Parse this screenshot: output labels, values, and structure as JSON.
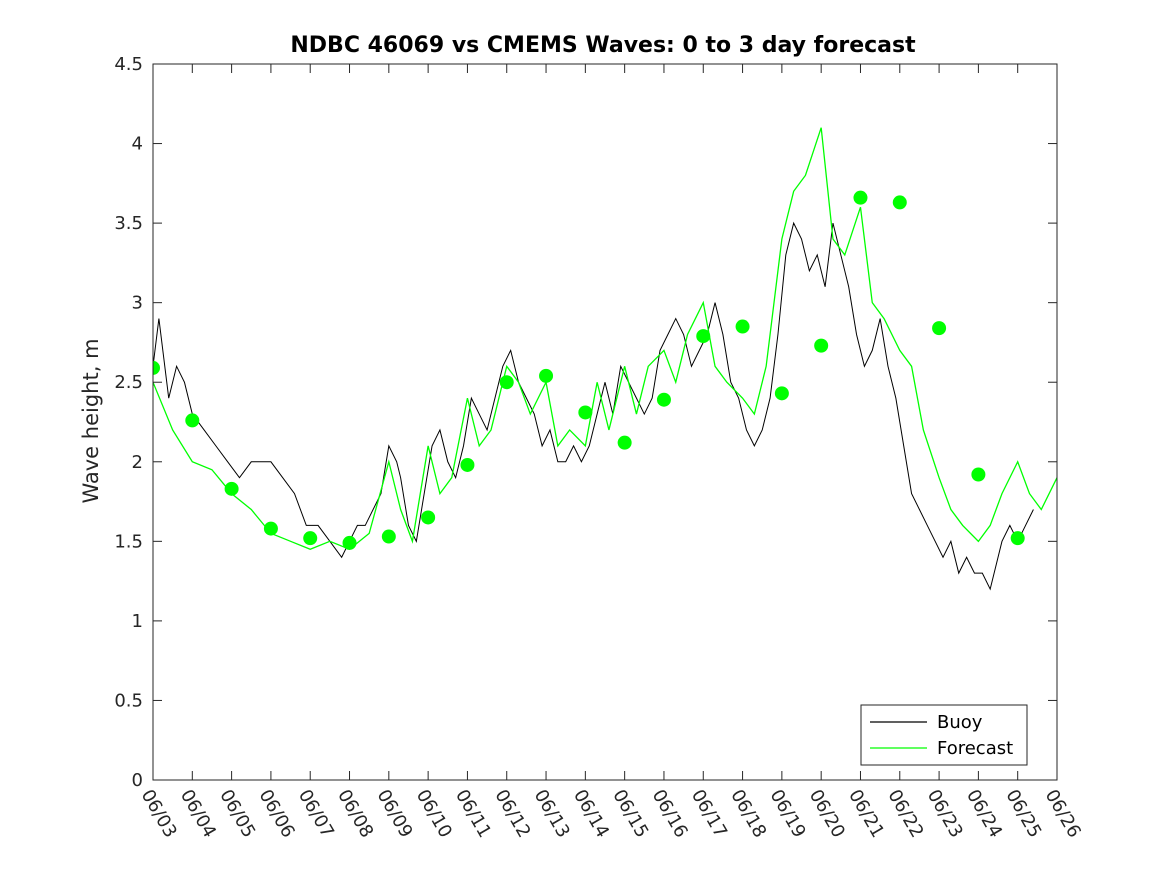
{
  "chart_data": {
    "type": "line",
    "title": "NDBC 46069 vs CMEMS Waves: 0 to 3 day forecast",
    "xlabel": "",
    "ylabel": "Wave height, m",
    "xlim": [
      0,
      23
    ],
    "ylim": [
      0,
      4.5
    ],
    "grid": false,
    "legend_position": "bottom-right",
    "x_ticks": [
      "06/03",
      "06/04",
      "06/05",
      "06/06",
      "06/07",
      "06/08",
      "06/09",
      "06/10",
      "06/11",
      "06/12",
      "06/13",
      "06/14",
      "06/15",
      "06/16",
      "06/17",
      "06/18",
      "06/19",
      "06/20",
      "06/21",
      "06/22",
      "06/23",
      "06/24",
      "06/25",
      "06/26"
    ],
    "y_ticks": [
      "0",
      "0.5",
      "1",
      "1.5",
      "2",
      "2.5",
      "3",
      "3.5",
      "4",
      "4.5"
    ],
    "colors": {
      "buoy": "#000000",
      "forecast": "#00ff00"
    },
    "series": [
      {
        "name": "Buoy",
        "x_day": [
          0,
          0.15,
          0.25,
          0.4,
          0.6,
          0.8,
          1,
          1.3,
          1.6,
          1.9,
          2.2,
          2.5,
          2.8,
          3.0,
          3.3,
          3.6,
          3.9,
          4.2,
          4.5,
          4.8,
          5.0,
          5.2,
          5.4,
          5.6,
          5.8,
          6.0,
          6.2,
          6.3,
          6.5,
          6.7,
          6.9,
          7.1,
          7.3,
          7.5,
          7.7,
          7.9,
          8.1,
          8.3,
          8.5,
          8.7,
          8.9,
          9.1,
          9.3,
          9.5,
          9.7,
          9.9,
          10.1,
          10.3,
          10.5,
          10.7,
          10.9,
          11.1,
          11.3,
          11.5,
          11.7,
          11.9,
          12.1,
          12.3,
          12.5,
          12.7,
          12.9,
          13.1,
          13.3,
          13.5,
          13.7,
          13.9,
          14.1,
          14.3,
          14.5,
          14.7,
          14.9,
          15.1,
          15.3,
          15.5,
          15.7,
          15.9,
          16.1,
          16.3,
          16.5,
          16.7,
          16.9,
          17.1,
          17.3,
          17.5,
          17.7,
          17.9,
          18.1,
          18.3,
          18.5,
          18.7,
          18.9,
          19.1,
          19.3,
          19.5,
          19.7,
          19.9,
          20.1,
          20.3,
          20.5,
          20.7,
          20.9,
          21.1,
          21.3,
          21.5,
          21.6,
          21.8,
          22.0,
          22.2,
          22.4
        ],
        "values": [
          2.6,
          2.9,
          2.7,
          2.4,
          2.6,
          2.5,
          2.3,
          2.2,
          2.1,
          2.0,
          1.9,
          2.0,
          2.0,
          2.0,
          1.9,
          1.8,
          1.6,
          1.6,
          1.5,
          1.4,
          1.5,
          1.6,
          1.6,
          1.7,
          1.8,
          2.1,
          2.0,
          1.9,
          1.6,
          1.5,
          1.8,
          2.1,
          2.2,
          2.0,
          1.9,
          2.1,
          2.4,
          2.3,
          2.2,
          2.4,
          2.6,
          2.7,
          2.5,
          2.4,
          2.3,
          2.1,
          2.2,
          2.0,
          2.0,
          2.1,
          2.0,
          2.1,
          2.3,
          2.5,
          2.3,
          2.6,
          2.5,
          2.4,
          2.3,
          2.4,
          2.7,
          2.8,
          2.9,
          2.8,
          2.6,
          2.7,
          2.8,
          3.0,
          2.8,
          2.5,
          2.4,
          2.2,
          2.1,
          2.2,
          2.4,
          2.8,
          3.3,
          3.5,
          3.4,
          3.2,
          3.3,
          3.1,
          3.5,
          3.3,
          3.1,
          2.8,
          2.6,
          2.7,
          2.9,
          2.6,
          2.4,
          2.1,
          1.8,
          1.7,
          1.6,
          1.5,
          1.4,
          1.5,
          1.3,
          1.4,
          1.3,
          1.3,
          1.2,
          1.4,
          1.5,
          1.6,
          1.5,
          1.6,
          1.7
        ]
      },
      {
        "name": "Forecast",
        "x_day": [
          0,
          0.5,
          1,
          1.5,
          2,
          2.5,
          3,
          3.5,
          4,
          4.5,
          5,
          5.5,
          6,
          6.3,
          6.6,
          7,
          7.3,
          7.6,
          8,
          8.3,
          8.6,
          9,
          9.3,
          9.6,
          10,
          10.3,
          10.6,
          11,
          11.3,
          11.6,
          12,
          12.3,
          12.6,
          13,
          13.3,
          13.6,
          14,
          14.3,
          14.6,
          15,
          15.3,
          15.6,
          16,
          16.3,
          16.6,
          17,
          17.3,
          17.6,
          18,
          18.3,
          18.6,
          19,
          19.3,
          19.6,
          20,
          20.3,
          20.6,
          21,
          21.3,
          21.6,
          22,
          22.3,
          22.6,
          23
        ],
        "values": [
          2.5,
          2.2,
          2.0,
          1.95,
          1.8,
          1.7,
          1.55,
          1.5,
          1.45,
          1.5,
          1.45,
          1.55,
          2.0,
          1.7,
          1.5,
          2.1,
          1.8,
          1.9,
          2.4,
          2.1,
          2.2,
          2.6,
          2.5,
          2.3,
          2.5,
          2.1,
          2.2,
          2.1,
          2.5,
          2.2,
          2.6,
          2.3,
          2.6,
          2.7,
          2.5,
          2.8,
          3.0,
          2.6,
          2.5,
          2.4,
          2.3,
          2.6,
          3.4,
          3.7,
          3.8,
          4.1,
          3.4,
          3.3,
          3.6,
          3.0,
          2.9,
          2.7,
          2.6,
          2.2,
          1.9,
          1.7,
          1.6,
          1.5,
          1.6,
          1.8,
          2.0,
          1.8,
          1.7,
          1.9
        ],
        "markers_x_day": [
          0,
          1,
          2,
          3,
          4,
          5,
          6,
          7,
          8,
          9,
          10,
          11,
          12,
          13,
          14,
          15,
          16,
          17,
          18,
          19,
          20,
          21,
          22
        ],
        "markers_values": [
          2.59,
          2.26,
          1.83,
          1.58,
          1.52,
          1.49,
          1.53,
          1.65,
          1.98,
          2.5,
          2.54,
          2.31,
          2.12,
          2.39,
          2.79,
          2.85,
          2.43,
          2.73,
          3.66,
          3.63,
          2.84,
          1.92,
          1.52
        ]
      }
    ]
  }
}
